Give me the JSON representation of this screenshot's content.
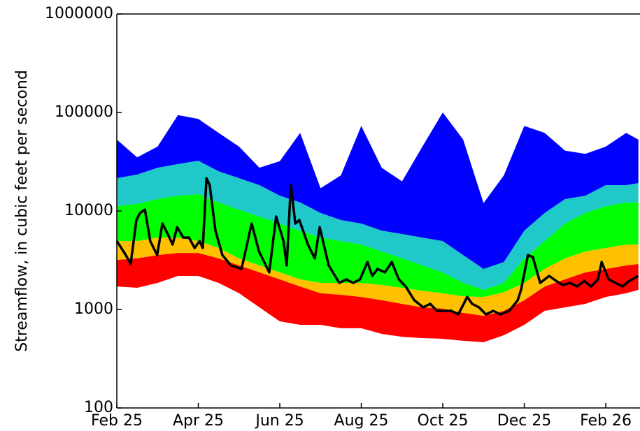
{
  "chart_data": {
    "type": "band-line",
    "y_label": "Streamflow, in cubic feet per second",
    "y_scale": "log",
    "ylim": [
      100,
      1000000
    ],
    "yticks": [
      100,
      1000,
      10000,
      100000,
      1000000
    ],
    "xlim": [
      0,
      12.84
    ],
    "xticks": [
      {
        "value": 0,
        "label": "Feb 25"
      },
      {
        "value": 2,
        "label": "Apr 25"
      },
      {
        "value": 4,
        "label": "Jun 25"
      },
      {
        "value": 6,
        "label": "Aug 25"
      },
      {
        "value": 8,
        "label": "Oct 25"
      },
      {
        "value": 10,
        "label": "Dec 25"
      },
      {
        "value": 12,
        "label": "Feb 26"
      }
    ],
    "band_x": [
      0,
      0.5,
      1,
      1.5,
      2,
      2.5,
      3,
      3.5,
      4,
      4.5,
      5,
      5.5,
      6,
      6.5,
      7,
      7.5,
      8,
      8.5,
      9,
      9.5,
      10,
      10.5,
      11,
      11.5,
      12,
      12.5,
      12.8
    ],
    "band_floor": [
      1710,
      1660,
      1860,
      2190,
      2190,
      1860,
      1460,
      1050,
      757,
      698,
      698,
      644,
      644,
      565,
      528,
      512,
      504,
      480,
      465,
      547,
      698,
      968,
      1050,
      1140,
      1340,
      1460,
      1580
    ],
    "bands": [
      {
        "color": "#ff0000",
        "values": [
          3190,
          3300,
          3570,
          3750,
          3750,
          3300,
          2800,
          2380,
          2020,
          1710,
          1460,
          1410,
          1340,
          1240,
          1140,
          1050,
          1020,
          923,
          863,
          968,
          1240,
          1710,
          2020,
          2380,
          2580,
          2800,
          2890
        ]
      },
      {
        "color": "#ffc000",
        "values": [
          4950,
          4950,
          5370,
          5370,
          4950,
          4210,
          3300,
          2800,
          2380,
          2020,
          1860,
          1860,
          1860,
          1770,
          1660,
          1550,
          1460,
          1360,
          1340,
          1500,
          1860,
          2580,
          3300,
          3880,
          4210,
          4570,
          4570
        ]
      },
      {
        "color": "#00ff00",
        "values": [
          11200,
          11800,
          13200,
          14300,
          14800,
          12200,
          10300,
          8770,
          7450,
          6320,
          5370,
          4950,
          4570,
          3880,
          3300,
          2800,
          2380,
          1860,
          1580,
          1860,
          3300,
          4950,
          7450,
          9530,
          11200,
          12200,
          12200
        ]
      },
      {
        "color": "#1fc9c9",
        "values": [
          21500,
          23400,
          27500,
          29900,
          32400,
          25300,
          21500,
          18300,
          14300,
          12200,
          9530,
          8090,
          7450,
          6320,
          5830,
          5370,
          4950,
          3570,
          2580,
          3030,
          6320,
          9530,
          13200,
          14300,
          18300,
          18300,
          19200
        ]
      },
      {
        "color": "#0000ff",
        "values": [
          53000,
          35000,
          45000,
          94000,
          86000,
          62000,
          45000,
          27500,
          32000,
          62000,
          17000,
          23000,
          73000,
          27500,
          20000,
          45000,
          100000,
          53000,
          12000,
          23000,
          73000,
          62000,
          41000,
          38000,
          45000,
          62000,
          53000
        ]
      }
    ],
    "series": [
      {
        "color": "#000000",
        "x": [
          0,
          0.22,
          0.34,
          0.48,
          0.57,
          0.69,
          0.82,
          0.99,
          1.12,
          1.25,
          1.37,
          1.48,
          1.63,
          1.77,
          1.91,
          2.03,
          2.11,
          2.2,
          2.28,
          2.42,
          2.59,
          2.8,
          3.06,
          3.31,
          3.49,
          3.74,
          3.91,
          4.09,
          4.17,
          4.27,
          4.38,
          4.48,
          4.69,
          4.86,
          4.98,
          5.2,
          5.46,
          5.63,
          5.8,
          5.97,
          6.15,
          6.27,
          6.4,
          6.58,
          6.75,
          6.92,
          7.09,
          7.3,
          7.52,
          7.69,
          7.86,
          8.09,
          8.21,
          8.38,
          8.6,
          8.72,
          8.89,
          9.06,
          9.24,
          9.41,
          9.63,
          9.84,
          9.92,
          10.09,
          10.21,
          10.39,
          10.61,
          10.78,
          10.95,
          11.12,
          11.3,
          11.47,
          11.64,
          11.81,
          11.9,
          12.07,
          12.24,
          12.41,
          12.58,
          12.8
        ],
        "values": [
          4950,
          3570,
          2890,
          8090,
          9530,
          10300,
          4950,
          3570,
          7450,
          5830,
          4570,
          6860,
          5370,
          5370,
          4210,
          4950,
          4210,
          21500,
          18300,
          6320,
          3570,
          2800,
          2580,
          7450,
          3880,
          2380,
          8770,
          4950,
          2800,
          18300,
          7450,
          8090,
          4570,
          3300,
          6860,
          2800,
          1860,
          2020,
          1860,
          2020,
          3030,
          2190,
          2580,
          2380,
          3030,
          2020,
          1710,
          1240,
          1050,
          1140,
          968,
          968,
          968,
          891,
          1340,
          1140,
          1050,
          891,
          968,
          891,
          968,
          1240,
          1580,
          3570,
          3400,
          1860,
          2190,
          1950,
          1770,
          1860,
          1710,
          1950,
          1710,
          2020,
          3030,
          2020,
          1860,
          1710,
          1950,
          2190
        ]
      }
    ]
  }
}
